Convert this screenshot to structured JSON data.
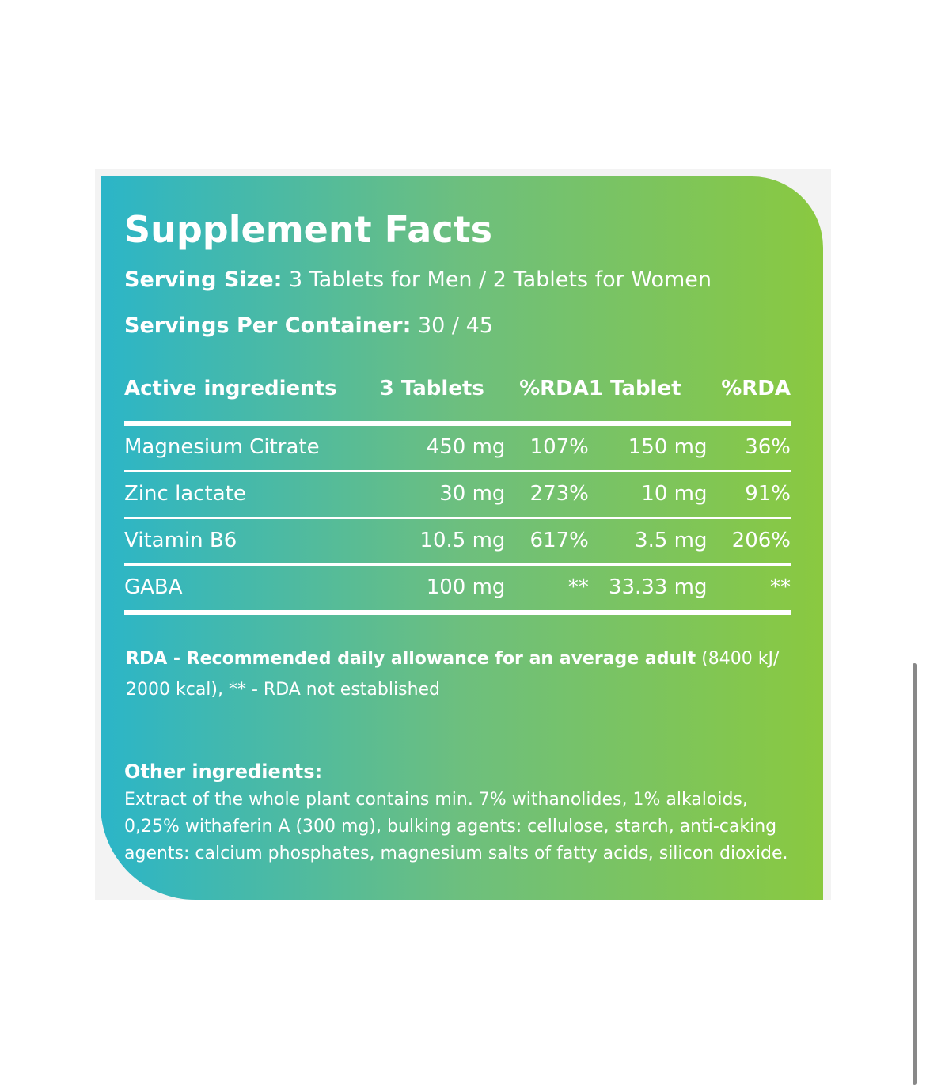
{
  "header": {
    "title": "Supplement Facts",
    "serving_size_label": "Serving Size:",
    "serving_size": "3 Tablets for Men / 2 Tablets  for Women",
    "servings_label": "Servings Per Container:",
    "servings": "30 / 45"
  },
  "table": {
    "columns": [
      "Active ingredients",
      "3 Tablets",
      "%RDA",
      "1 Tablet",
      "%RDA"
    ],
    "rows": [
      [
        "Magnesium Citrate",
        "450 mg",
        "107%",
        "150 mg",
        "36%"
      ],
      [
        "Zinc lactate",
        "30 mg",
        "273%",
        "10 mg",
        "91%"
      ],
      [
        "Vitamin B6",
        "10.5 mg",
        "617%",
        "3.5 mg",
        "206%"
      ],
      [
        "GABA",
        "100 mg",
        "**",
        "33.33 mg",
        "**"
      ]
    ]
  },
  "footnote": {
    "bold": "RDA - Recommended daily allowance for an average adult",
    "text": "(8400 kJ/ 2000 kcal), ** - RDA not established"
  },
  "other": {
    "title": "Other ingredients:",
    "text": "Extract of the whole plant contains min. 7% withanolides, 1% alkaloids, 0,25% withaferin A (300 mg), bulking agents: cellulose, starch, anti-caking agents: calcium phosphates, magnesium salts of fatty acids, silicon dioxide."
  }
}
